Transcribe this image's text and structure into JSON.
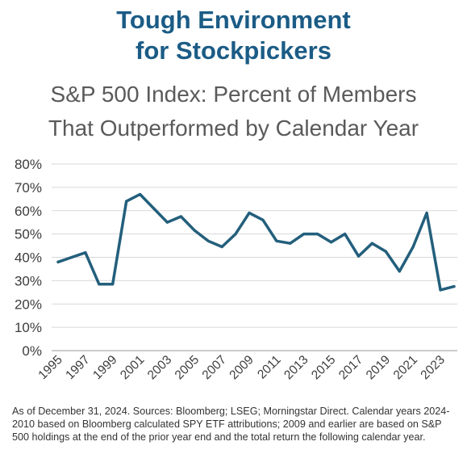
{
  "header": {
    "title_line1": "Tough Environment",
    "title_line2": "for Stockpickers",
    "subtitle_line1": "S&P 500 Index: Percent of Members",
    "subtitle_line2": "That Outperformed by Calendar Year"
  },
  "footnote": "As of December 31, 2024. Sources: Bloomberg; LSEG; Morningstar Direct. Calendar years 2024-2010 based on Bloomberg calculated SPY ETF attributions; 2009 and earlier are based on S&P 500 holdings at the end of the prior year end and the total return the following calendar year.",
  "colors": {
    "line": "#235f7c",
    "title": "#1b5c86",
    "subtitle": "#5a5a5a",
    "grid": "#d9d9d9"
  },
  "chart_data": {
    "type": "line",
    "title": "S&P 500 Index: Percent of Members That Outperformed by Calendar Year",
    "xlabel": "",
    "ylabel": "",
    "grid": true,
    "x": [
      1995,
      1996,
      1997,
      1998,
      1999,
      2000,
      2001,
      2002,
      2003,
      2004,
      2005,
      2006,
      2007,
      2008,
      2009,
      2010,
      2011,
      2012,
      2013,
      2014,
      2015,
      2016,
      2017,
      2018,
      2019,
      2020,
      2021,
      2022,
      2023,
      2024
    ],
    "xtick_labels": [
      "1995",
      "1997",
      "1999",
      "2001",
      "2003",
      "2005",
      "2007",
      "2009",
      "2011",
      "2013",
      "2015",
      "2017",
      "2019",
      "2021",
      "2023"
    ],
    "ytick_labels": [
      "0%",
      "10%",
      "20%",
      "30%",
      "40%",
      "50%",
      "60%",
      "70%",
      "80%"
    ],
    "ylim": [
      0,
      80
    ],
    "series": [
      {
        "values": [
          38,
          40,
          42,
          28.5,
          28.5,
          64,
          67,
          61,
          55,
          57.5,
          51.5,
          47,
          44.5,
          50,
          59,
          56,
          47,
          46,
          50,
          50,
          46.5,
          50,
          40.5,
          46,
          42.5,
          34,
          44.5,
          59,
          26,
          27.5
        ]
      }
    ]
  }
}
